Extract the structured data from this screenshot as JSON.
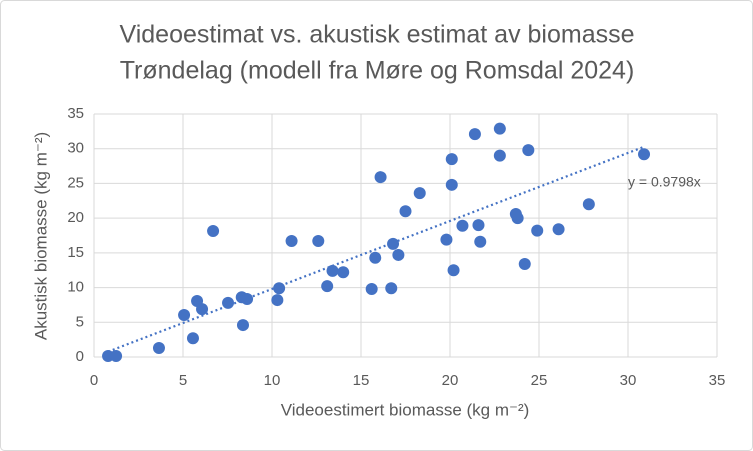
{
  "chart_data": {
    "type": "scatter",
    "title": [
      "Videoestimat vs. akustisk estimat av biomasse",
      "Trøndelag (modell fra Møre og Romsdal 2024)"
    ],
    "x_label": "Videoestimert biomasse (kg m⁻²)",
    "y_label": "Akustisk biomasse (kg m⁻²)",
    "color": "#4472c4",
    "grid": true,
    "xlim": [
      0,
      35
    ],
    "xticks": [
      0,
      5,
      10,
      15,
      20,
      25,
      30,
      35
    ],
    "ylim": [
      0,
      35
    ],
    "yticks": [
      0,
      5,
      10,
      15,
      20,
      25,
      30,
      35
    ],
    "x": [
      0.79,
      1.24,
      3.65,
      5.06,
      5.56,
      5.79,
      6.07,
      6.69,
      7.53,
      8.3,
      8.37,
      8.6,
      10.3,
      10.4,
      11.1,
      12.6,
      13.1,
      13.4,
      14.0,
      15.6,
      15.8,
      16.1,
      16.7,
      16.8,
      17.1,
      17.5,
      18.3,
      19.8,
      20.1,
      20.1,
      20.2,
      20.7,
      21.4,
      21.6,
      21.7,
      22.8,
      22.8,
      23.7,
      23.8,
      24.2,
      24.4,
      24.9,
      26.1,
      27.8,
      30.9
    ],
    "values": [
      0.14,
      0.14,
      1.3,
      6.05,
      2.7,
      8.07,
      6.9,
      18.15,
      7.8,
      8.6,
      4.6,
      8.35,
      8.2,
      9.9,
      16.7,
      16.7,
      10.2,
      12.4,
      12.2,
      9.8,
      14.3,
      25.9,
      9.9,
      16.3,
      14.7,
      21.0,
      23.6,
      16.9,
      28.5,
      24.8,
      12.5,
      18.9,
      32.1,
      19.0,
      16.6,
      32.9,
      29.0,
      20.6,
      20.0,
      13.4,
      29.8,
      18.2,
      18.4,
      22.0,
      29.2
    ],
    "trendline": {
      "label": "y = 0.9798x",
      "slope": 0.9798
    }
  }
}
